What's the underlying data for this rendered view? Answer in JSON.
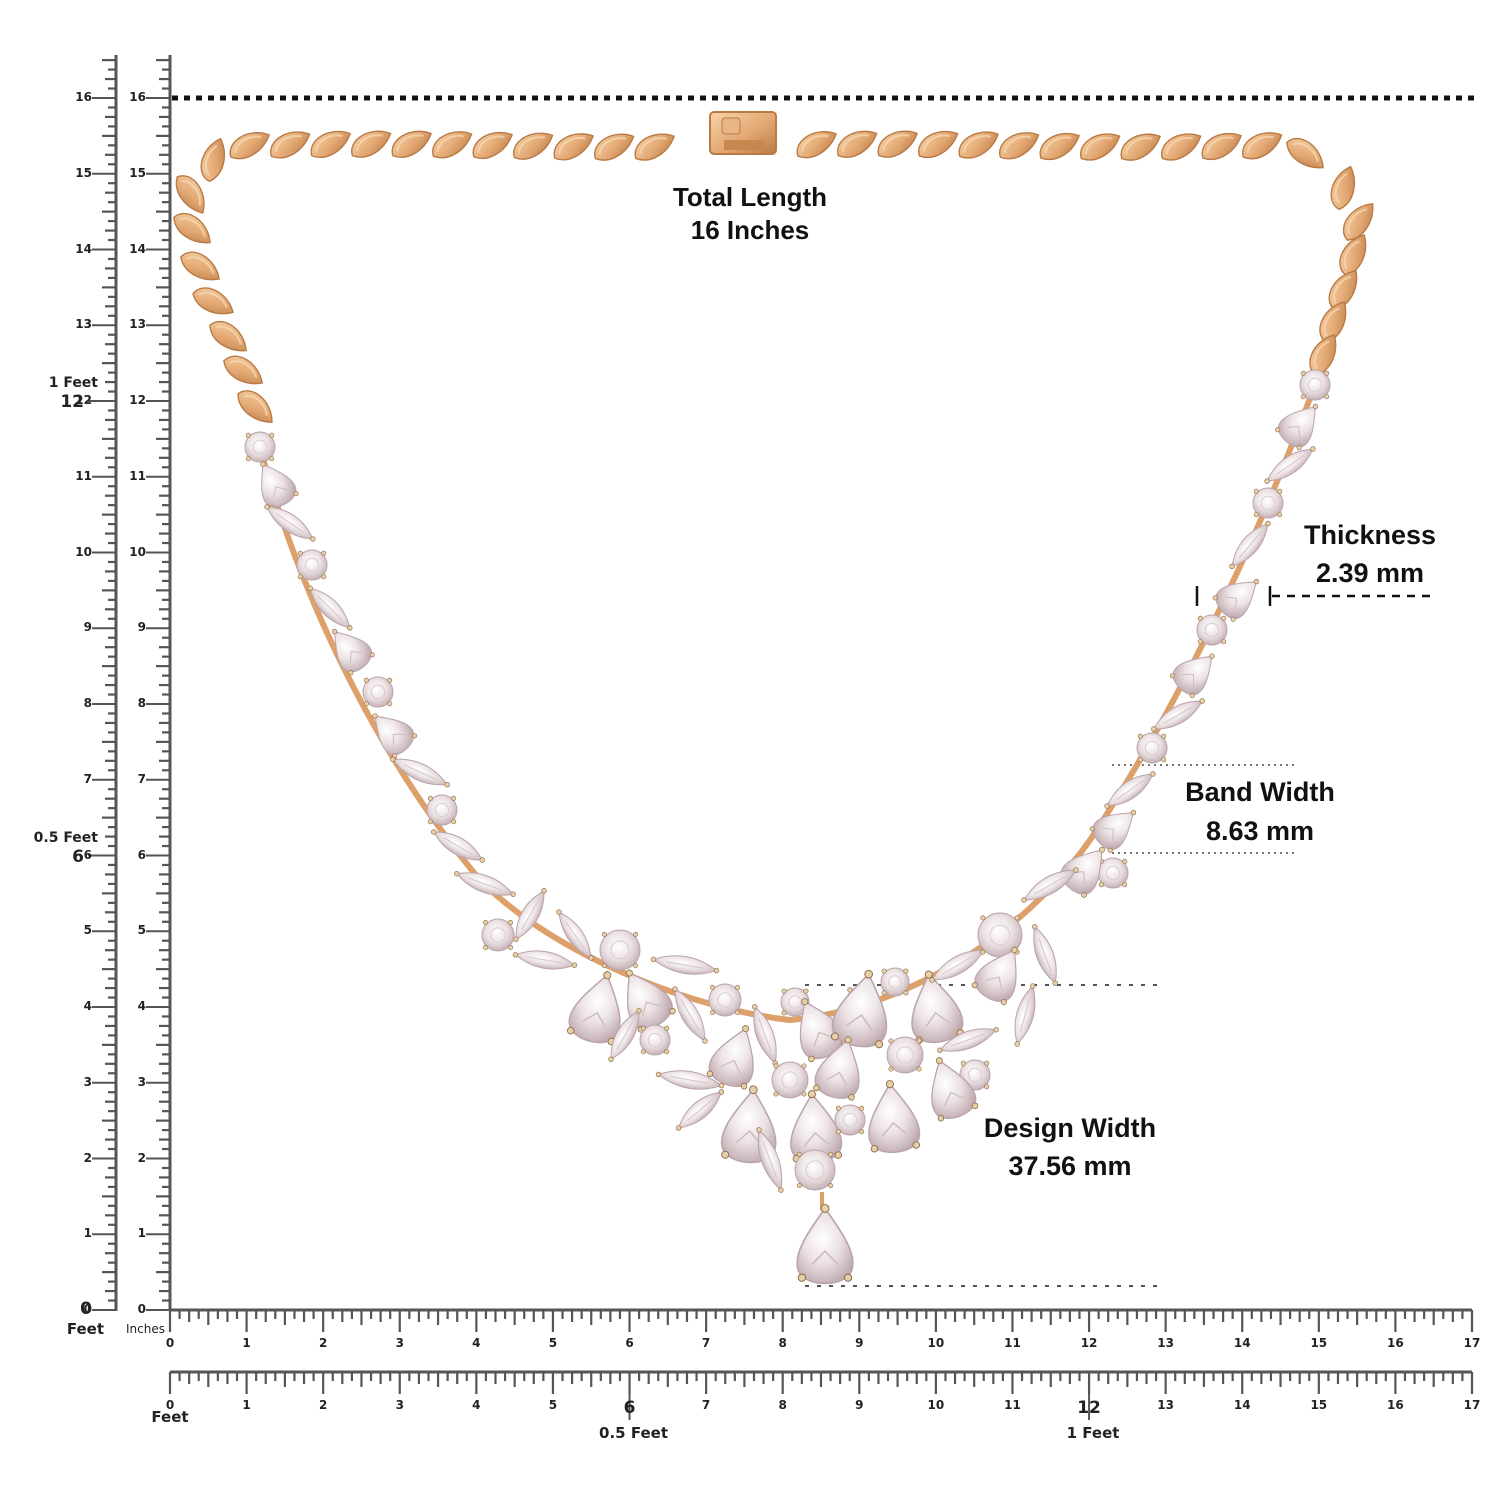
{
  "product": "Diamond leaf cluster necklace with gold petal links",
  "annotations": {
    "total_length": {
      "line1": "Total Length",
      "line2": "16 Inches"
    },
    "thickness": {
      "line1": "Thickness",
      "line2": "2.39 mm"
    },
    "band_width": {
      "line1": "Band Width",
      "line2": "8.63 mm"
    },
    "design_width": {
      "line1": "Design Width",
      "line2": "37.56 mm"
    }
  },
  "rulers": {
    "vertical_feet": {
      "unit_label": "Feet",
      "zero_label": "0",
      "ticks": [
        "1",
        "2",
        "3",
        "4",
        "5",
        "6",
        "7",
        "8",
        "9",
        "10",
        "11",
        "12",
        "13",
        "14",
        "15",
        "16"
      ],
      "feet_markers": [
        {
          "at": 6,
          "label": "0.5 Feet"
        },
        {
          "at": 12,
          "label": "1 Feet"
        }
      ]
    },
    "vertical_inches": {
      "unit_label": "Inches",
      "zero_label": "0",
      "ticks": [
        "1",
        "2",
        "3",
        "4",
        "5",
        "6",
        "7",
        "8",
        "9",
        "10",
        "11",
        "12",
        "13",
        "14",
        "15",
        "16"
      ]
    },
    "horizontal_inches": {
      "zero_label": "0",
      "ticks": [
        "1",
        "2",
        "3",
        "4",
        "5",
        "6",
        "7",
        "8",
        "9",
        "10",
        "11",
        "12",
        "13",
        "14",
        "15",
        "16",
        "17"
      ]
    },
    "horizontal_feet": {
      "unit_label": "Feet",
      "zero_label": "0",
      "ticks": [
        "1",
        "2",
        "3",
        "4",
        "5",
        "6",
        "7",
        "8",
        "9",
        "10",
        "11",
        "12",
        "13",
        "14",
        "15",
        "16",
        "17"
      ],
      "feet_markers": [
        {
          "at": 6,
          "label": "0.5 Feet"
        },
        {
          "at": 12,
          "label": "1 Feet"
        }
      ]
    }
  },
  "colors": {
    "gold_light": "#f1c89a",
    "gold_mid": "#dea06a",
    "gold_dark": "#b97a45",
    "diamond_light": "#f7f1f2",
    "diamond_mid": "#e1d3d6",
    "diamond_dark": "#b9a5ab",
    "ruler": "#555555",
    "text": "#111111"
  }
}
